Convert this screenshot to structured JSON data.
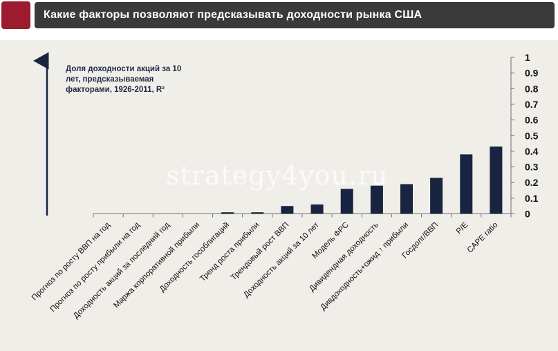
{
  "header": {
    "title": "Какие факторы позволяют предсказывать доходности рынка США"
  },
  "watermark": "strategy4you.ru",
  "colors": {
    "bar": "#182440",
    "accent": "#9c1b2e",
    "header_bg": "#3a3a3a",
    "panel_bg": "#f0eee9"
  },
  "chart_data": {
    "type": "bar",
    "ylabel": "Доля доходности акций за 10 лет, предсказываемая факторами, 1926-2011,  R²",
    "ylim": [
      0,
      1
    ],
    "yticks": [
      "0",
      "0.1",
      "0.2",
      "0.3",
      "0.4",
      "0.5",
      "0.6",
      "0.7",
      "0.8",
      "0.9",
      "1"
    ],
    "categories": [
      "Прогноз по росту ВВП на год",
      "Прогноз по росту прибыли на год",
      "Доходность акций за последний год",
      "Маржа корпоративной прибыли",
      "Доходность гособлигаций",
      "Тренд роста прибыли",
      "Трендовый рост ВВП",
      "Доходность акций за 10 лет",
      "Модель ФРС",
      "Дивидендная доходность",
      "Дивдоходность+ожид ↑ прибыли",
      "Госдолг/ВВП",
      "P/E",
      "CAPE ratio"
    ],
    "values": [
      0,
      0,
      0,
      0,
      0.01,
      0.01,
      0.05,
      0.06,
      0.16,
      0.18,
      0.19,
      0.23,
      0.38,
      0.43
    ],
    "y_axis_side": "right",
    "grid": false,
    "legend": "none"
  }
}
